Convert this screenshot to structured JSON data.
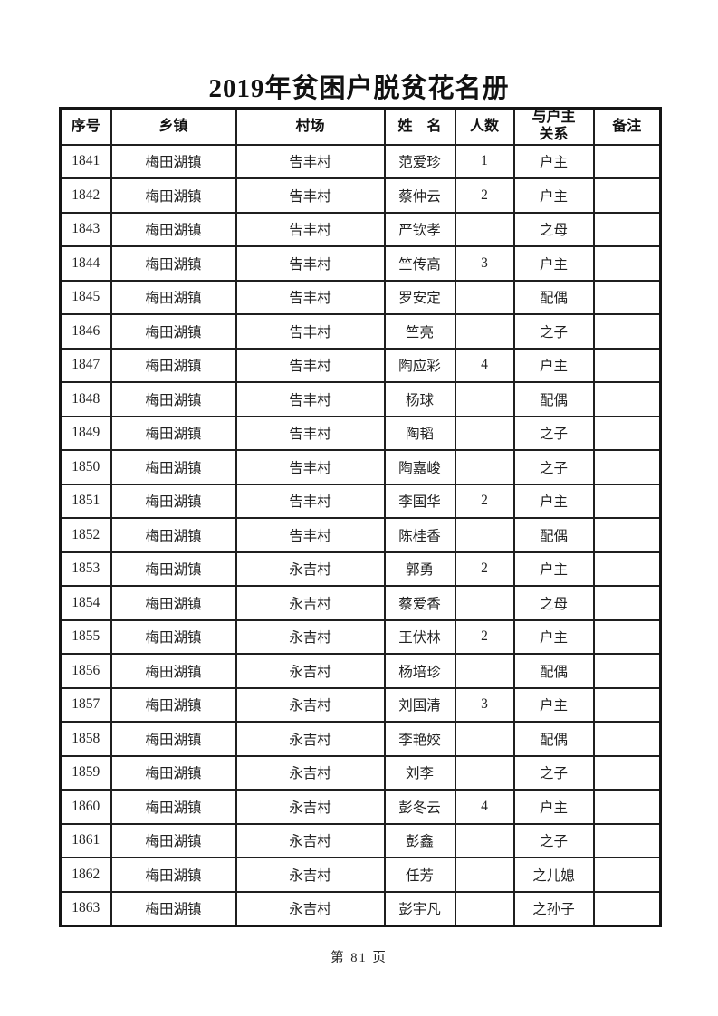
{
  "page": {
    "title": "2019年贫困户脱贫花名册",
    "footer": "第 81 页"
  },
  "table": {
    "headers": [
      "序号",
      "乡镇",
      "村场",
      "姓　名",
      "人数",
      "与户主\n关系",
      "备注"
    ],
    "rows": [
      {
        "serial": "1841",
        "town": "梅田湖镇",
        "village": "告丰村",
        "name": "范爱珍",
        "count": "1",
        "relation": "户主",
        "note": ""
      },
      {
        "serial": "1842",
        "town": "梅田湖镇",
        "village": "告丰村",
        "name": "蔡仲云",
        "count": "2",
        "relation": "户主",
        "note": ""
      },
      {
        "serial": "1843",
        "town": "梅田湖镇",
        "village": "告丰村",
        "name": "严钦孝",
        "count": "",
        "relation": "之母",
        "note": ""
      },
      {
        "serial": "1844",
        "town": "梅田湖镇",
        "village": "告丰村",
        "name": "竺传高",
        "count": "3",
        "relation": "户主",
        "note": ""
      },
      {
        "serial": "1845",
        "town": "梅田湖镇",
        "village": "告丰村",
        "name": "罗安定",
        "count": "",
        "relation": "配偶",
        "note": ""
      },
      {
        "serial": "1846",
        "town": "梅田湖镇",
        "village": "告丰村",
        "name": "竺亮",
        "count": "",
        "relation": "之子",
        "note": ""
      },
      {
        "serial": "1847",
        "town": "梅田湖镇",
        "village": "告丰村",
        "name": "陶应彩",
        "count": "4",
        "relation": "户主",
        "note": ""
      },
      {
        "serial": "1848",
        "town": "梅田湖镇",
        "village": "告丰村",
        "name": "杨球",
        "count": "",
        "relation": "配偶",
        "note": ""
      },
      {
        "serial": "1849",
        "town": "梅田湖镇",
        "village": "告丰村",
        "name": "陶韬",
        "count": "",
        "relation": "之子",
        "note": ""
      },
      {
        "serial": "1850",
        "town": "梅田湖镇",
        "village": "告丰村",
        "name": "陶嘉峻",
        "count": "",
        "relation": "之子",
        "note": ""
      },
      {
        "serial": "1851",
        "town": "梅田湖镇",
        "village": "告丰村",
        "name": "李国华",
        "count": "2",
        "relation": "户主",
        "note": ""
      },
      {
        "serial": "1852",
        "town": "梅田湖镇",
        "village": "告丰村",
        "name": "陈桂香",
        "count": "",
        "relation": "配偶",
        "note": ""
      },
      {
        "serial": "1853",
        "town": "梅田湖镇",
        "village": "永吉村",
        "name": "郭勇",
        "count": "2",
        "relation": "户主",
        "note": ""
      },
      {
        "serial": "1854",
        "town": "梅田湖镇",
        "village": "永吉村",
        "name": "蔡爱香",
        "count": "",
        "relation": "之母",
        "note": ""
      },
      {
        "serial": "1855",
        "town": "梅田湖镇",
        "village": "永吉村",
        "name": "王伏林",
        "count": "2",
        "relation": "户主",
        "note": ""
      },
      {
        "serial": "1856",
        "town": "梅田湖镇",
        "village": "永吉村",
        "name": "杨培珍",
        "count": "",
        "relation": "配偶",
        "note": ""
      },
      {
        "serial": "1857",
        "town": "梅田湖镇",
        "village": "永吉村",
        "name": "刘国清",
        "count": "3",
        "relation": "户主",
        "note": ""
      },
      {
        "serial": "1858",
        "town": "梅田湖镇",
        "village": "永吉村",
        "name": "李艳姣",
        "count": "",
        "relation": "配偶",
        "note": ""
      },
      {
        "serial": "1859",
        "town": "梅田湖镇",
        "village": "永吉村",
        "name": "刘李",
        "count": "",
        "relation": "之子",
        "note": ""
      },
      {
        "serial": "1860",
        "town": "梅田湖镇",
        "village": "永吉村",
        "name": "彭冬云",
        "count": "4",
        "relation": "户主",
        "note": ""
      },
      {
        "serial": "1861",
        "town": "梅田湖镇",
        "village": "永吉村",
        "name": "彭鑫",
        "count": "",
        "relation": "之子",
        "note": ""
      },
      {
        "serial": "1862",
        "town": "梅田湖镇",
        "village": "永吉村",
        "name": "任芳",
        "count": "",
        "relation": "之儿媳",
        "note": ""
      },
      {
        "serial": "1863",
        "town": "梅田湖镇",
        "village": "永吉村",
        "name": "彭宇凡",
        "count": "",
        "relation": "之孙子",
        "note": ""
      }
    ]
  }
}
